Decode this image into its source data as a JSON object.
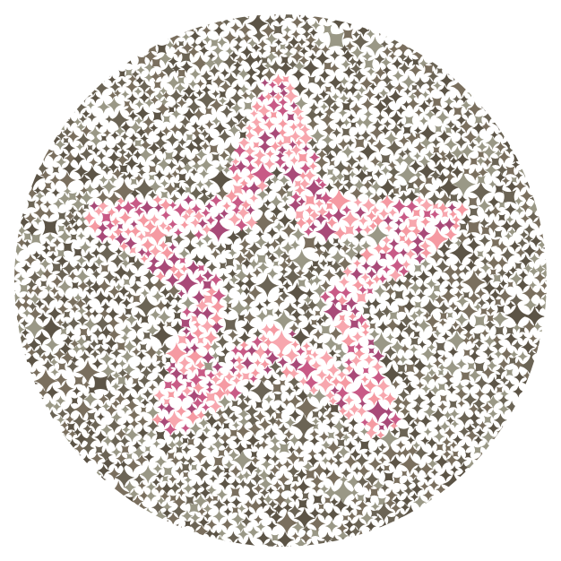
{
  "plate": {
    "figure": "star",
    "figure_orientation": "point-up",
    "background_colors": [
      "#5c5446",
      "#7a6f5e",
      "#9a9886",
      "#6b6455"
    ],
    "figure_colors": [
      "#f59aa2",
      "#f7a7ae",
      "#a84a78",
      "#c85a86"
    ],
    "background": "#ffffff"
  }
}
